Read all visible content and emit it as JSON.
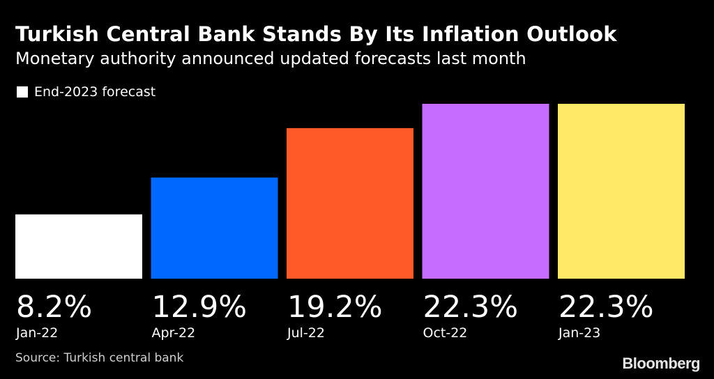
{
  "chart_data": {
    "type": "bar",
    "title": "Turkish Central Bank Stands By Its Inflation Outlook",
    "subtitle": "Monetary authority announced updated forecasts last month",
    "legend": [
      {
        "label": "End-2023 forecast",
        "color": "#ffffff"
      }
    ],
    "categories": [
      "Jan-22",
      "Apr-22",
      "Jul-22",
      "Oct-22",
      "Jan-23"
    ],
    "values": [
      8.2,
      12.9,
      19.2,
      22.3,
      22.3
    ],
    "value_labels": [
      "8.2%",
      "12.9%",
      "19.2%",
      "22.3%",
      "22.3%"
    ],
    "colors": [
      "#ffffff",
      "#0068ff",
      "#ff5a27",
      "#c66dff",
      "#ffe966"
    ],
    "xlabel": "",
    "ylabel": "",
    "ylim": [
      0,
      22.3
    ],
    "grid": false,
    "legend_position": "top-left"
  },
  "footer": {
    "source": "Source: Turkish central bank",
    "brand": "Bloomberg"
  }
}
